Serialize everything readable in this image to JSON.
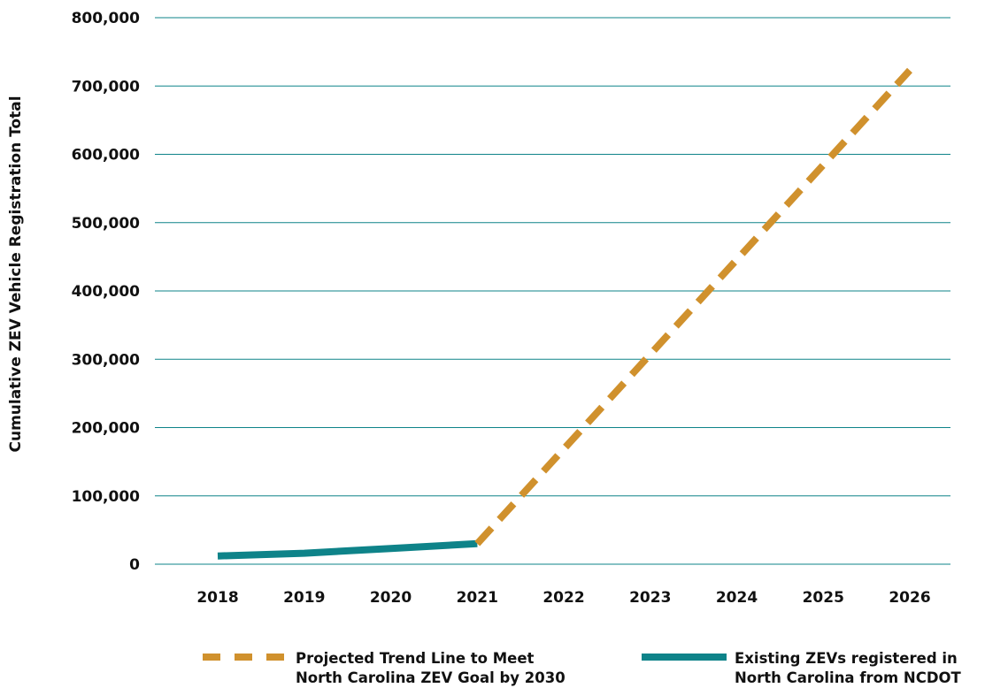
{
  "chart_data": {
    "type": "line",
    "ylabel": "Cumulative ZEV Vehicle Registration Total",
    "xlabel": "",
    "x": [
      "2018",
      "2019",
      "2020",
      "2021",
      "2022",
      "2023",
      "2024",
      "2025",
      "2026"
    ],
    "yticks": [
      {
        "value": 0,
        "label": "0"
      },
      {
        "value": 100000,
        "label": "100,000"
      },
      {
        "value": 200000,
        "label": "200,000"
      },
      {
        "value": 300000,
        "label": "300,000"
      },
      {
        "value": 400000,
        "label": "400,000"
      },
      {
        "value": 500000,
        "label": "500,000"
      },
      {
        "value": 600000,
        "label": "600,000"
      },
      {
        "value": 700000,
        "label": "700,000"
      },
      {
        "value": 800000,
        "label": "800,000"
      }
    ],
    "ylim": [
      0,
      800000
    ],
    "grid": true,
    "legend_position": "bottom",
    "series": [
      {
        "name": "Existing ZEVs registered in North Carolina from NCDOT",
        "legend_lines": [
          "Existing ZEVs registered in",
          "North Carolina from NCDOT"
        ],
        "style": "solid",
        "color": "#0e8389",
        "x": [
          "2018",
          "2019",
          "2020",
          "2021"
        ],
        "values": [
          12000,
          16000,
          23000,
          30000
        ]
      },
      {
        "name": "Projected Trend Line to Meet North Carolina ZEV Goal by 2030",
        "legend_lines": [
          "Projected Trend Line to Meet",
          "North Carolina ZEV Goal by 2030"
        ],
        "style": "dashed",
        "color": "#d0912d",
        "x": [
          "2021",
          "2026"
        ],
        "values": [
          30000,
          723000
        ]
      }
    ],
    "gridline_color": "#0e8389"
  }
}
